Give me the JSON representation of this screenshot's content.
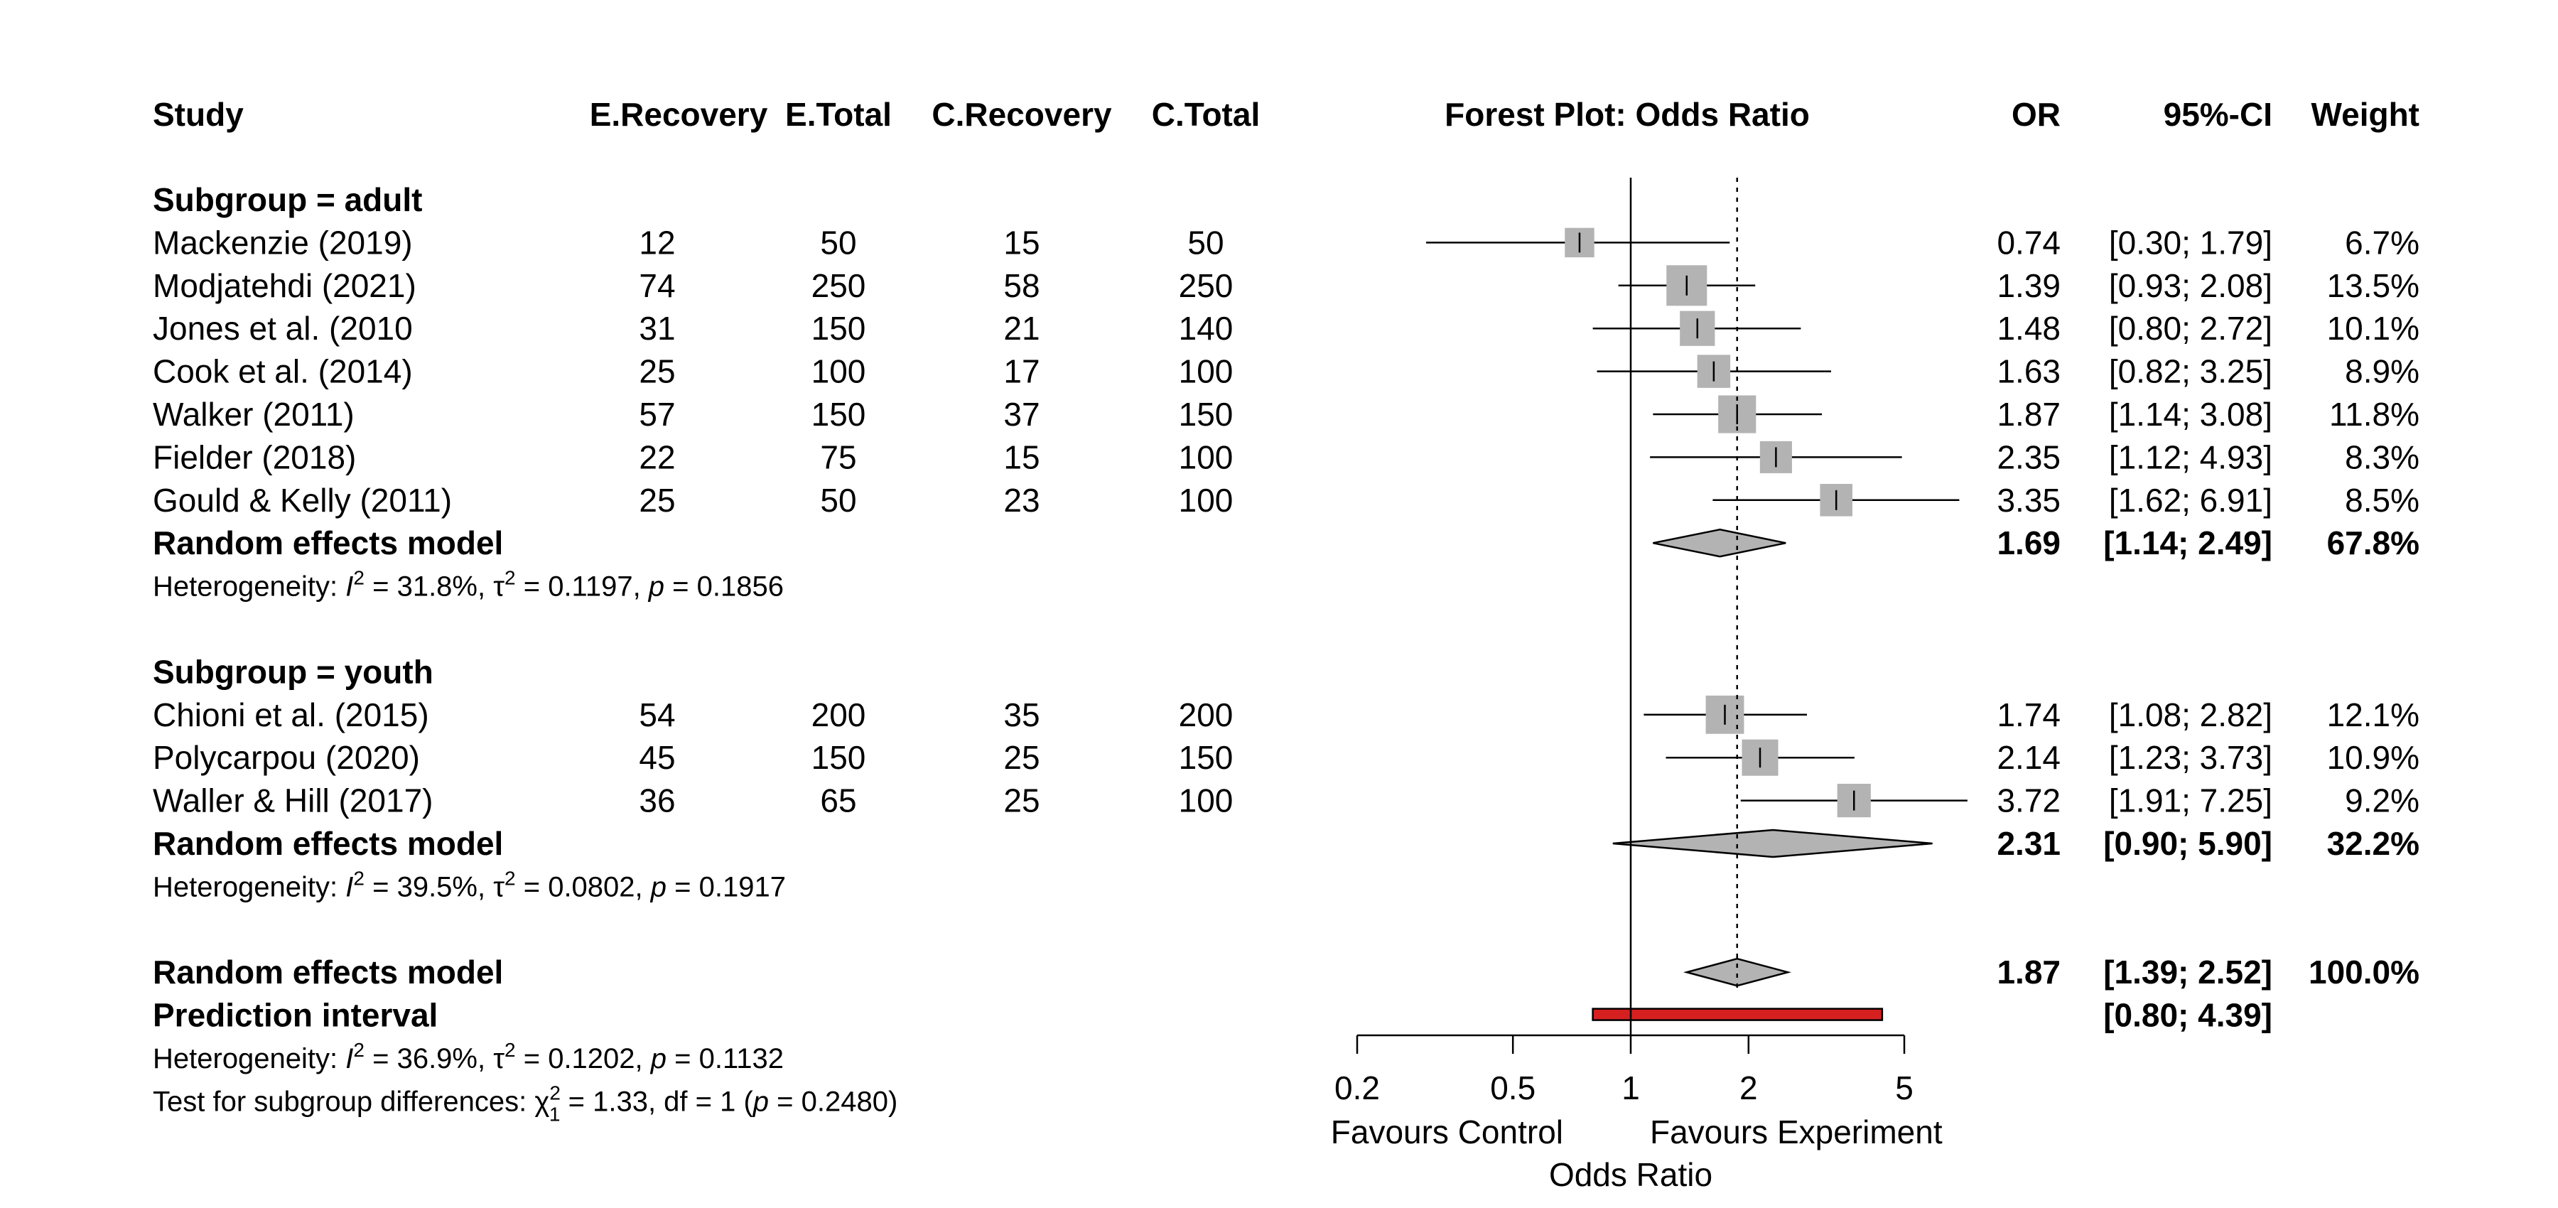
{
  "columns": {
    "study": "Study",
    "e_recovery": "E.Recovery",
    "e_total": "E.Total",
    "c_recovery": "C.Recovery",
    "c_total": "C.Total",
    "plot_title": "Forest Plot: Odds Ratio",
    "or": "OR",
    "ci": "95%-CI",
    "weight": "Weight"
  },
  "chart_data": {
    "type": "forest",
    "title": "Forest Plot: Odds Ratio",
    "xlabel": "Odds Ratio",
    "x_scale": "log",
    "xlim": [
      0.2,
      5
    ],
    "x_ticks": [
      0.2,
      0.5,
      1,
      2,
      5
    ],
    "x_tick_labels": [
      "0.2",
      "0.5",
      "1",
      "2",
      "5"
    ],
    "null_line": 1,
    "overall_dotted_line": 1.87,
    "favours_left": "Favours Control",
    "favours_right": "Favours Experiment",
    "colors": {
      "box": "#b3b3b3",
      "diamond": "#b3b3b3",
      "prediction": "#d62020"
    },
    "subgroups": [
      {
        "label": "Subgroup = adult",
        "studies": [
          {
            "study": "Mackenzie (2019)",
            "e_recovery": "12",
            "e_total": "50",
            "c_recovery": "15",
            "c_total": "50",
            "or": 0.74,
            "lo": 0.3,
            "hi": 1.79,
            "or_text": "0.74",
            "ci_text": "[0.30; 1.79]",
            "weight_text": "6.7%",
            "weight": 6.7
          },
          {
            "study": "Modjatehdi (2021)",
            "e_recovery": "74",
            "e_total": "250",
            "c_recovery": "58",
            "c_total": "250",
            "or": 1.39,
            "lo": 0.93,
            "hi": 2.08,
            "or_text": "1.39",
            "ci_text": "[0.93; 2.08]",
            "weight_text": "13.5%",
            "weight": 13.5
          },
          {
            "study": "Jones et al. (2010",
            "e_recovery": "31",
            "e_total": "150",
            "c_recovery": "21",
            "c_total": "140",
            "or": 1.48,
            "lo": 0.8,
            "hi": 2.72,
            "or_text": "1.48",
            "ci_text": "[0.80; 2.72]",
            "weight_text": "10.1%",
            "weight": 10.1
          },
          {
            "study": "Cook et al. (2014)",
            "e_recovery": "25",
            "e_total": "100",
            "c_recovery": "17",
            "c_total": "100",
            "or": 1.63,
            "lo": 0.82,
            "hi": 3.25,
            "or_text": "1.63",
            "ci_text": "[0.82; 3.25]",
            "weight_text": "8.9%",
            "weight": 8.9
          },
          {
            "study": "Walker (2011)",
            "e_recovery": "57",
            "e_total": "150",
            "c_recovery": "37",
            "c_total": "150",
            "or": 1.87,
            "lo": 1.14,
            "hi": 3.08,
            "or_text": "1.87",
            "ci_text": "[1.14; 3.08]",
            "weight_text": "11.8%",
            "weight": 11.8
          },
          {
            "study": "Fielder (2018)",
            "e_recovery": "22",
            "e_total": "75",
            "c_recovery": "15",
            "c_total": "100",
            "or": 2.35,
            "lo": 1.12,
            "hi": 4.93,
            "or_text": "2.35",
            "ci_text": "[1.12; 4.93]",
            "weight_text": "8.3%",
            "weight": 8.3
          },
          {
            "study": "Gould & Kelly (2011)",
            "e_recovery": "25",
            "e_total": "50",
            "c_recovery": "23",
            "c_total": "100",
            "or": 3.35,
            "lo": 1.62,
            "hi": 6.91,
            "or_text": "3.35",
            "ci_text": "[1.62; 6.91]",
            "weight_text": "8.5%",
            "weight": 8.5
          }
        ],
        "model": {
          "label": "Random effects model",
          "or": 1.69,
          "lo": 1.14,
          "hi": 2.49,
          "or_text": "1.69",
          "ci_text": "[1.14; 2.49]",
          "weight_text": "67.8%"
        },
        "heterogeneity": {
          "prefix": "Heterogeneity: ",
          "i2_symbol": "I",
          "i2_sup": "2",
          "i2_value": " = 31.8%, ",
          "tau2_symbol": "τ",
          "tau2_sup": "2",
          "tau2_value": " = 0.1197, ",
          "p_symbol": "p",
          "p_value": " = 0.1856"
        }
      },
      {
        "label": "Subgroup = youth",
        "studies": [
          {
            "study": "Chioni et al. (2015)",
            "e_recovery": "54",
            "e_total": "200",
            "c_recovery": "35",
            "c_total": "200",
            "or": 1.74,
            "lo": 1.08,
            "hi": 2.82,
            "or_text": "1.74",
            "ci_text": "[1.08; 2.82]",
            "weight_text": "12.1%",
            "weight": 12.1
          },
          {
            "study": "Polycarpou (2020)",
            "e_recovery": "45",
            "e_total": "150",
            "c_recovery": "25",
            "c_total": "150",
            "or": 2.14,
            "lo": 1.23,
            "hi": 3.73,
            "or_text": "2.14",
            "ci_text": "[1.23; 3.73]",
            "weight_text": "10.9%",
            "weight": 10.9
          },
          {
            "study": "Waller & Hill (2017)",
            "e_recovery": "36",
            "e_total": "65",
            "c_recovery": "25",
            "c_total": "100",
            "or": 3.72,
            "lo": 1.91,
            "hi": 7.25,
            "or_text": "3.72",
            "ci_text": "[1.91; 7.25]",
            "weight_text": "9.2%",
            "weight": 9.2
          }
        ],
        "model": {
          "label": "Random effects model",
          "or": 2.31,
          "lo": 0.9,
          "hi": 5.9,
          "or_text": "2.31",
          "ci_text": "[0.90; 5.90]",
          "weight_text": "32.2%"
        },
        "heterogeneity": {
          "prefix": "Heterogeneity: ",
          "i2_symbol": "I",
          "i2_sup": "2",
          "i2_value": " = 39.5%, ",
          "tau2_symbol": "τ",
          "tau2_sup": "2",
          "tau2_value": " = 0.0802, ",
          "p_symbol": "p",
          "p_value": " = 0.1917"
        }
      }
    ],
    "overall": {
      "label": "Random effects model",
      "or": 1.87,
      "lo": 1.39,
      "hi": 2.52,
      "or_text": "1.87",
      "ci_text": "[1.39; 2.52]",
      "weight_text": "100.0%"
    },
    "prediction": {
      "label": "Prediction interval",
      "lo": 0.8,
      "hi": 4.39,
      "ci_text": "[0.80; 4.39]"
    },
    "overall_heterogeneity": {
      "prefix": "Heterogeneity: ",
      "i2_symbol": "I",
      "i2_sup": "2",
      "i2_value": " = 36.9%, ",
      "tau2_symbol": "τ",
      "tau2_sup": "2",
      "tau2_value": " = 0.1202, ",
      "p_symbol": "p",
      "p_value": " = 0.1132"
    },
    "subgroup_test": {
      "prefix": "Test for subgroup differences: ",
      "chi_symbol": "χ",
      "chi_sup": "2",
      "chi_sub": "1",
      "chi_value": " = 1.33, df = 1 (",
      "p_symbol": "p",
      "p_value": " = 0.2480)"
    }
  }
}
